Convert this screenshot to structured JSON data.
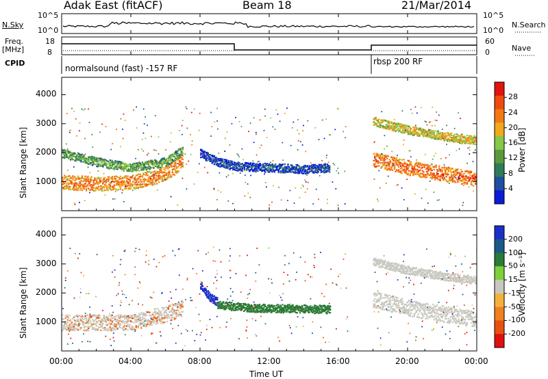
{
  "header": {
    "site": "Adak East (fitACF)",
    "beam": "Beam 18",
    "date": "21/Mar/2014"
  },
  "panels": {
    "nsky": {
      "label": "N.Sky",
      "ticks": [
        "10^5",
        "10^0"
      ],
      "right_label": "N.Search",
      "right_ticks": [
        "10^5",
        "10^0"
      ]
    },
    "freq": {
      "label_top": "Freq.",
      "label_bot": "[MHz]",
      "ticks": [
        "18",
        "8"
      ],
      "right_label": "Nave",
      "right_ticks": [
        "60",
        "0"
      ]
    },
    "cpid": {
      "label": "CPID",
      "seg1": "normalsound (fast) -157 RF",
      "seg2": "rbsp 200 RF"
    }
  },
  "power": {
    "colorbar_label": "Power [dB]",
    "colorbar_ticks": [
      "28",
      "24",
      "20",
      "16",
      "12",
      "8",
      "4"
    ],
    "colors": [
      "#0b1bd6",
      "#1f4fa0",
      "#2f7a5a",
      "#5a9a3c",
      "#86c84a",
      "#f0a81c",
      "#f37a10",
      "#f04a12",
      "#e0130f"
    ]
  },
  "velocity": {
    "colorbar_label": "Velocity [m s⁻¹]",
    "colorbar_ticks": [
      "200",
      "100",
      "50",
      "15",
      "-15",
      "-50",
      "-100",
      "-200"
    ],
    "colors": [
      "#1a2fc8",
      "#1a5a8a",
      "#2b7a35",
      "#7fcf3a",
      "#c8c8c0",
      "#f4b23a",
      "#f08020",
      "#e85010",
      "#e01010"
    ]
  },
  "axes": {
    "ylabel": "Slant Range [km]",
    "yticks": [
      "4000",
      "3000",
      "2000",
      "1000"
    ],
    "xticks": [
      "00:00",
      "04:00",
      "08:00",
      "12:00",
      "16:00",
      "20:00",
      "00:00"
    ],
    "xlabel": "Time UT"
  },
  "chart_data": [
    {
      "type": "heatmap",
      "title": "Power",
      "xlabel": "Time UT",
      "ylabel": "Slant Range [km]",
      "x_range_hours": [
        0,
        24
      ],
      "ylim": [
        0,
        4600
      ],
      "colorbar": {
        "label": "Power [dB]",
        "range": [
          0,
          32
        ],
        "ticks": [
          4,
          8,
          12,
          16,
          20,
          24,
          28
        ]
      },
      "features": [
        {
          "name": "main-band",
          "t": [
            0,
            2,
            4,
            5.5,
            6.5,
            7
          ],
          "range_km": [
            1000,
            950,
            1000,
            1200,
            1500,
            1800
          ],
          "power_db": 24
        },
        {
          "name": "upper-band",
          "t": [
            0,
            2,
            4,
            6,
            7
          ],
          "range_km": [
            2000,
            1700,
            1500,
            1700,
            2100
          ],
          "power_db": 14
        },
        {
          "name": "weak-band",
          "t": [
            8,
            9,
            10,
            12,
            14,
            15.5
          ],
          "range_km": [
            2000,
            1700,
            1550,
            1500,
            1450,
            1500
          ],
          "power_db": 6
        },
        {
          "name": "post-18-lower",
          "t": [
            18,
            19,
            20,
            21,
            22,
            23,
            24
          ],
          "range_km": [
            1800,
            1650,
            1500,
            1400,
            1300,
            1200,
            1100
          ],
          "power_db": 26
        },
        {
          "name": "post-18-upper",
          "t": [
            18,
            19,
            20,
            21,
            22,
            23,
            24
          ],
          "range_km": [
            3100,
            2950,
            2800,
            2700,
            2600,
            2500,
            2450
          ],
          "power_db": 20
        }
      ]
    },
    {
      "type": "heatmap",
      "title": "Velocity",
      "xlabel": "Time UT",
      "ylabel": "Slant Range [km]",
      "x_range_hours": [
        0,
        24
      ],
      "ylim": [
        0,
        4600
      ],
      "colorbar": {
        "label": "Velocity [m s⁻¹]",
        "range": [
          -250,
          250
        ],
        "ticks": [
          200,
          100,
          50,
          15,
          -15,
          -50,
          -100,
          -200
        ]
      },
      "features": [
        {
          "name": "ground-scatter",
          "t": [
            0,
            2,
            4,
            6,
            7
          ],
          "range_km": [
            1000,
            1000,
            1000,
            1300,
            1500
          ],
          "velocity": 0
        },
        {
          "name": "blue-streak",
          "t": [
            8,
            8.5,
            9
          ],
          "range_km": [
            2300,
            1900,
            1700
          ],
          "velocity": 220
        },
        {
          "name": "green-band",
          "t": [
            9,
            11,
            13,
            15.5
          ],
          "range_km": [
            1600,
            1500,
            1480,
            1450
          ],
          "velocity": 40
        },
        {
          "name": "post-18-lower",
          "t": [
            18,
            20,
            22,
            24
          ],
          "range_km": [
            1800,
            1500,
            1300,
            1100
          ],
          "velocity": 0
        },
        {
          "name": "post-18-upper",
          "t": [
            18,
            20,
            22,
            24
          ],
          "range_km": [
            3100,
            2800,
            2600,
            2450
          ],
          "velocity": 0
        }
      ]
    }
  ]
}
